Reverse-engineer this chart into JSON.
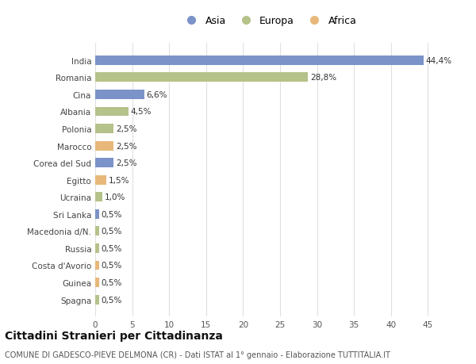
{
  "countries": [
    "India",
    "Romania",
    "Cina",
    "Albania",
    "Polonia",
    "Marocco",
    "Corea del Sud",
    "Egitto",
    "Ucraina",
    "Sri Lanka",
    "Macedonia d/N.",
    "Russia",
    "Costa d'Avorio",
    "Guinea",
    "Spagna"
  ],
  "values": [
    44.4,
    28.8,
    6.6,
    4.5,
    2.5,
    2.5,
    2.5,
    1.5,
    1.0,
    0.5,
    0.5,
    0.5,
    0.5,
    0.5,
    0.5
  ],
  "labels": [
    "44,4%",
    "28,8%",
    "6,6%",
    "4,5%",
    "2,5%",
    "2,5%",
    "2,5%",
    "1,5%",
    "1,0%",
    "0,5%",
    "0,5%",
    "0,5%",
    "0,5%",
    "0,5%",
    "0,5%"
  ],
  "continents": [
    "Asia",
    "Europa",
    "Asia",
    "Europa",
    "Europa",
    "Africa",
    "Asia",
    "Africa",
    "Europa",
    "Asia",
    "Europa",
    "Europa",
    "Africa",
    "Africa",
    "Europa"
  ],
  "colors": {
    "Asia": "#7b93c8",
    "Europa": "#b5c28a",
    "Africa": "#e8b87a"
  },
  "legend_order": [
    "Asia",
    "Europa",
    "Africa"
  ],
  "title": "Cittadini Stranieri per Cittadinanza",
  "subtitle": "COMUNE DI GADESCO-PIEVE DELMONA (CR) - Dati ISTAT al 1° gennaio - Elaborazione TUTTITALIA.IT",
  "xlim": [
    0,
    47
  ],
  "xticks": [
    0,
    5,
    10,
    15,
    20,
    25,
    30,
    35,
    40,
    45
  ],
  "background_color": "#ffffff",
  "grid_color": "#e0e0e0",
  "bar_height": 0.55,
  "label_fontsize": 7.5,
  "tick_fontsize": 7.5,
  "title_fontsize": 10,
  "subtitle_fontsize": 7
}
